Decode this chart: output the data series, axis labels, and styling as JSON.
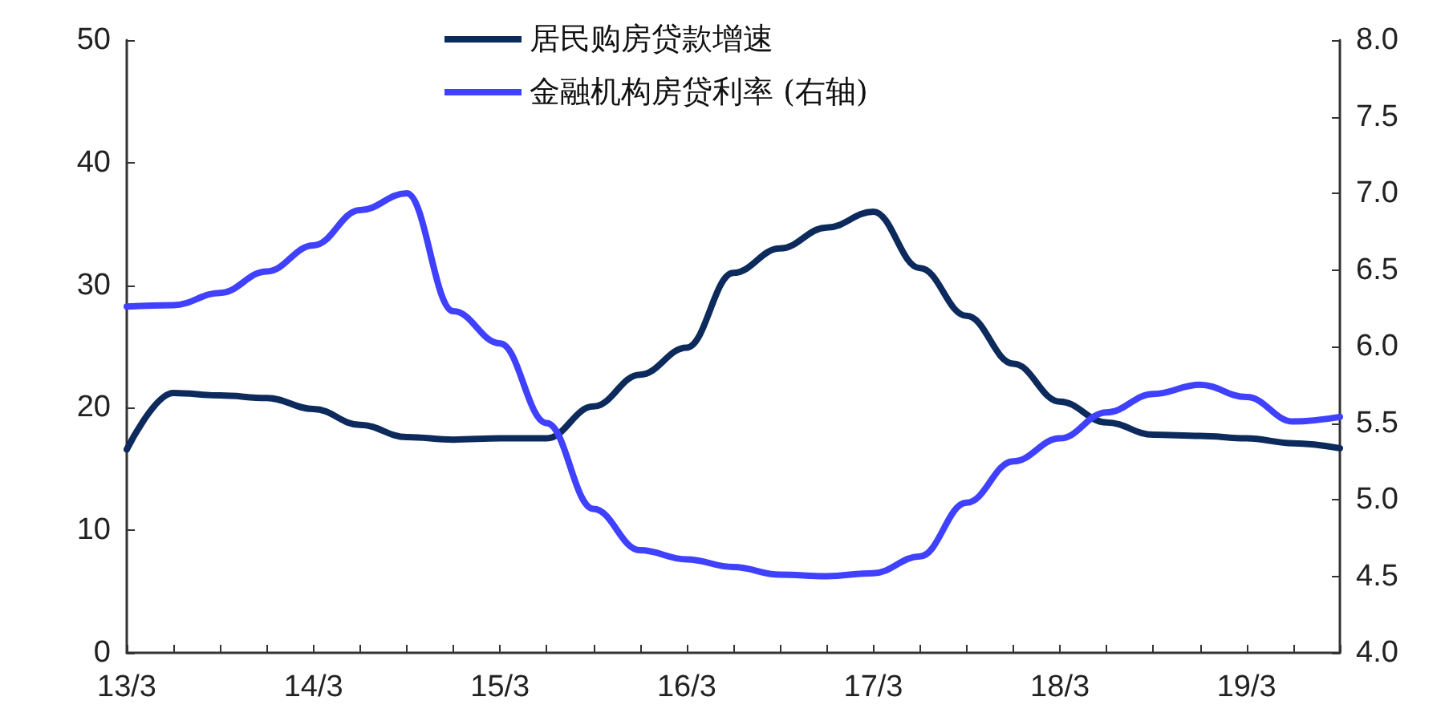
{
  "chart_data": {
    "type": "line",
    "categories": [
      "13/3",
      null,
      null,
      null,
      "14/3",
      null,
      null,
      null,
      "15/3",
      null,
      null,
      null,
      "16/3",
      null,
      null,
      null,
      "17/3",
      null,
      null,
      null,
      "18/3",
      null,
      null,
      null,
      "19/3",
      null,
      null
    ],
    "series": [
      {
        "name": "居民购房贷款增速",
        "color": "#0d2a5c",
        "values": [
          16.6,
          21.2,
          21.0,
          20.8,
          19.9,
          18.6,
          17.6,
          17.4,
          17.5,
          17.5,
          20.1,
          22.7,
          24.9,
          31.0,
          33.0,
          34.7,
          36.0,
          31.4,
          27.5,
          23.6,
          20.5,
          18.8,
          17.8,
          17.7,
          17.5,
          17.1,
          16.7
        ]
      },
      {
        "name": "金融机构房贷利率 (右轴)",
        "color": "#4040ff",
        "axis": "y2",
        "values": [
          6.26,
          6.27,
          6.35,
          6.49,
          6.66,
          6.89,
          7.0,
          6.23,
          6.02,
          5.5,
          4.94,
          4.67,
          4.61,
          4.56,
          4.51,
          4.5,
          4.52,
          4.63,
          4.98,
          5.25,
          5.4,
          5.57,
          5.69,
          5.75,
          5.67,
          5.51,
          5.54
        ]
      }
    ],
    "ylim": [
      0,
      50
    ],
    "yticks": [
      0,
      10,
      20,
      30,
      40,
      50
    ],
    "y2lim": [
      4,
      8
    ],
    "y2ticks": [
      {
        "value": 4,
        "label": "4.0"
      },
      {
        "value": 4.5,
        "label": "4.5"
      },
      {
        "value": 5,
        "label": "5.0"
      },
      {
        "value": 5.5,
        "label": "5.5"
      },
      {
        "value": 6,
        "label": "6.0"
      },
      {
        "value": 6.5,
        "label": "6.5"
      },
      {
        "value": 7,
        "label": "7.0"
      },
      {
        "value": 7.5,
        "label": "7.5"
      },
      {
        "value": 8,
        "label": "8.0"
      }
    ],
    "grid": false,
    "legend": "top",
    "marker": "none",
    "line_style": "solid"
  }
}
